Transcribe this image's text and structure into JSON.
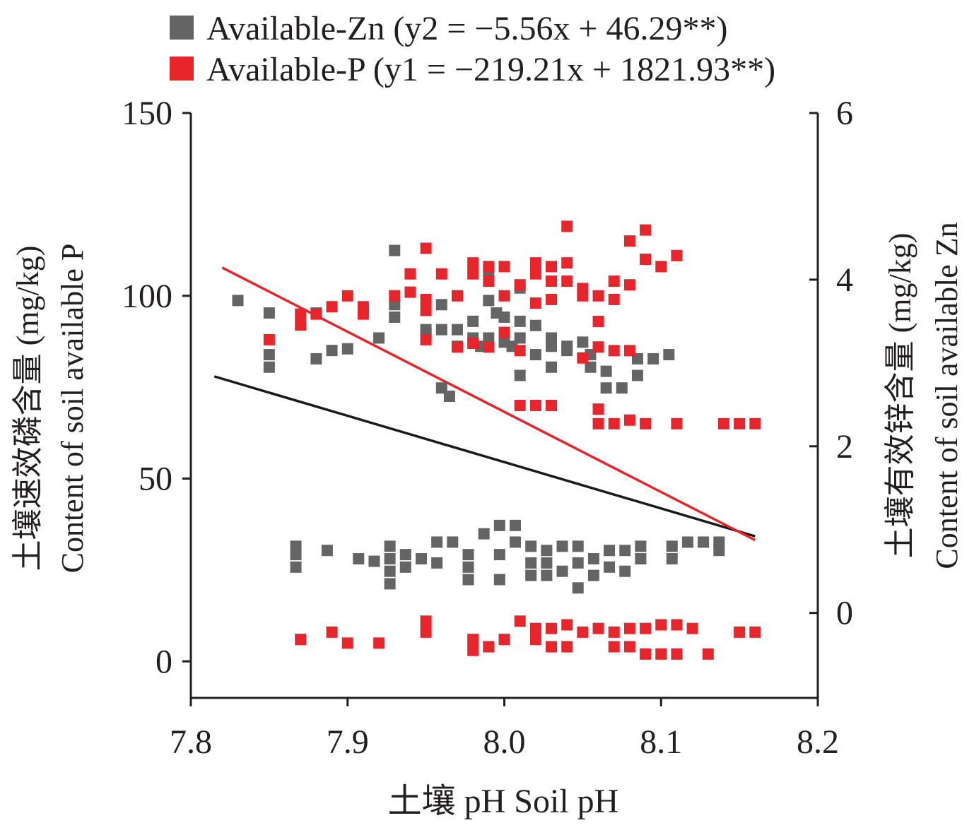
{
  "chart_data": {
    "type": "scatter",
    "x_ticks": [
      "7.8",
      "7.9",
      "8.0",
      "8.1",
      "8.2"
    ],
    "y_left_ticks": [
      "0",
      "50",
      "100",
      "150"
    ],
    "y_right_ticks": [
      "0",
      "2",
      "4",
      "6"
    ],
    "xlim": [
      7.8,
      8.2
    ],
    "ylim_left": [
      -10,
      150
    ],
    "ylim_right": [
      -1.02,
      6
    ],
    "xlabel": "土壤 pH Soil pH",
    "ylabel_left_cn": "土壤速效磷含量 (mg/kg)",
    "ylabel_left_en": "Content of soil available P",
    "ylabel_right_cn": "土壤有效锌含量 (mg/kg)",
    "ylabel_right_en": "Content of soil available Zn",
    "legend_position": "top",
    "series": [
      {
        "name": "Available-Zn",
        "legend_label": "Available-Zn (y2 = −5.56x + 46.29**)",
        "color": "#646464",
        "axis": "right",
        "equation": "y2 = −5.56x + 46.29**",
        "fit": {
          "slope": -5.56,
          "intercept": 46.29,
          "x_range": [
            7.815,
            8.16
          ]
        },
        "points": [
          [
            7.83,
            3.75
          ],
          [
            7.85,
            3.6
          ],
          [
            7.85,
            3.1
          ],
          [
            7.85,
            2.95
          ],
          [
            7.88,
            3.6
          ],
          [
            7.88,
            3.05
          ],
          [
            7.89,
            3.15
          ],
          [
            7.9,
            3.17
          ],
          [
            7.92,
            3.3
          ],
          [
            7.93,
            4.35
          ],
          [
            7.93,
            3.7
          ],
          [
            7.93,
            3.55
          ],
          [
            7.95,
            3.35
          ],
          [
            7.95,
            3.4
          ],
          [
            7.96,
            3.7
          ],
          [
            7.96,
            3.4
          ],
          [
            7.96,
            2.7
          ],
          [
            7.965,
            2.6
          ],
          [
            7.97,
            3.4
          ],
          [
            7.97,
            3.2
          ],
          [
            7.98,
            3.5
          ],
          [
            7.98,
            3.3
          ],
          [
            7.985,
            3.2
          ],
          [
            7.99,
            4.1
          ],
          [
            7.99,
            3.75
          ],
          [
            7.99,
            3.3
          ],
          [
            7.995,
            3.6
          ],
          [
            8.0,
            3.55
          ],
          [
            8.0,
            3.25
          ],
          [
            8.005,
            3.2
          ],
          [
            8.01,
            3.9
          ],
          [
            8.01,
            3.5
          ],
          [
            8.01,
            3.3
          ],
          [
            8.01,
            2.85
          ],
          [
            8.02,
            3.45
          ],
          [
            8.02,
            3.1
          ],
          [
            8.03,
            3.3
          ],
          [
            8.03,
            3.2
          ],
          [
            8.03,
            2.95
          ],
          [
            8.04,
            3.15
          ],
          [
            8.04,
            3.2
          ],
          [
            8.05,
            3.25
          ],
          [
            8.055,
            3.1
          ],
          [
            8.055,
            2.95
          ],
          [
            8.065,
            2.9
          ],
          [
            8.065,
            2.7
          ],
          [
            8.075,
            2.7
          ],
          [
            8.085,
            3.05
          ],
          [
            8.085,
            2.85
          ],
          [
            8.095,
            3.05
          ],
          [
            8.105,
            3.1
          ],
          [
            7.867,
            0.8
          ],
          [
            7.867,
            0.7
          ],
          [
            7.867,
            0.55
          ],
          [
            7.887,
            0.75
          ],
          [
            7.907,
            0.65
          ],
          [
            7.917,
            0.62
          ],
          [
            7.927,
            0.8
          ],
          [
            7.927,
            0.65
          ],
          [
            7.927,
            0.5
          ],
          [
            7.927,
            0.35
          ],
          [
            7.937,
            0.7
          ],
          [
            7.937,
            0.55
          ],
          [
            7.947,
            0.65
          ],
          [
            7.957,
            0.85
          ],
          [
            7.957,
            0.6
          ],
          [
            7.967,
            0.85
          ],
          [
            7.977,
            0.7
          ],
          [
            7.977,
            0.55
          ],
          [
            7.977,
            0.4
          ],
          [
            7.987,
            0.95
          ],
          [
            7.997,
            1.05
          ],
          [
            7.997,
            0.7
          ],
          [
            7.997,
            0.4
          ],
          [
            8.007,
            1.05
          ],
          [
            8.007,
            0.85
          ],
          [
            8.017,
            0.8
          ],
          [
            8.017,
            0.6
          ],
          [
            8.017,
            0.45
          ],
          [
            8.027,
            0.75
          ],
          [
            8.027,
            0.6
          ],
          [
            8.027,
            0.45
          ],
          [
            8.037,
            0.8
          ],
          [
            8.037,
            0.5
          ],
          [
            8.047,
            0.8
          ],
          [
            8.047,
            0.6
          ],
          [
            8.047,
            0.3
          ],
          [
            8.057,
            0.65
          ],
          [
            8.057,
            0.45
          ],
          [
            8.067,
            0.75
          ],
          [
            8.067,
            0.55
          ],
          [
            8.077,
            0.75
          ],
          [
            8.077,
            0.5
          ],
          [
            8.087,
            0.8
          ],
          [
            8.087,
            0.65
          ],
          [
            8.107,
            0.8
          ],
          [
            8.107,
            0.65
          ],
          [
            8.117,
            0.85
          ],
          [
            8.127,
            0.85
          ],
          [
            8.137,
            0.85
          ],
          [
            8.137,
            0.75
          ]
        ]
      },
      {
        "name": "Available-P",
        "legend_label": "Available-P (y1 = −219.21x + 1821.93**)",
        "color": "#e8252b",
        "axis": "left",
        "equation": "y1 = −219.21x + 1821.93**",
        "fit": {
          "slope": -219.21,
          "intercept": 1821.93,
          "x_range": [
            7.82,
            8.16
          ]
        },
        "points": [
          [
            7.85,
            88
          ],
          [
            7.87,
            95
          ],
          [
            7.87,
            92
          ],
          [
            7.88,
            95
          ],
          [
            7.89,
            97
          ],
          [
            7.9,
            100
          ],
          [
            7.91,
            97
          ],
          [
            7.91,
            95
          ],
          [
            7.93,
            100
          ],
          [
            7.94,
            106
          ],
          [
            7.94,
            101
          ],
          [
            7.95,
            113
          ],
          [
            7.95,
            99
          ],
          [
            7.95,
            96
          ],
          [
            7.95,
            88
          ],
          [
            7.96,
            106
          ],
          [
            7.97,
            100
          ],
          [
            7.98,
            109
          ],
          [
            7.98,
            106
          ],
          [
            7.97,
            86
          ],
          [
            7.98,
            87
          ],
          [
            7.99,
            108
          ],
          [
            7.99,
            104
          ],
          [
            7.99,
            86
          ],
          [
            8.0,
            108
          ],
          [
            8.0,
            100
          ],
          [
            8.0,
            90
          ],
          [
            8.01,
            103
          ],
          [
            8.01,
            85
          ],
          [
            8.02,
            109
          ],
          [
            8.02,
            106
          ],
          [
            8.02,
            98
          ],
          [
            8.03,
            108
          ],
          [
            8.03,
            104
          ],
          [
            8.03,
            99
          ],
          [
            8.04,
            119
          ],
          [
            8.04,
            109
          ],
          [
            8.04,
            104
          ],
          [
            8.05,
            102
          ],
          [
            8.05,
            100
          ],
          [
            8.05,
            83
          ],
          [
            8.06,
            100
          ],
          [
            8.06,
            93
          ],
          [
            8.06,
            86
          ],
          [
            8.07,
            104
          ],
          [
            8.07,
            99
          ],
          [
            8.07,
            85
          ],
          [
            8.08,
            115
          ],
          [
            8.08,
            103
          ],
          [
            8.08,
            85
          ],
          [
            8.09,
            118
          ],
          [
            8.09,
            110
          ],
          [
            8.1,
            108
          ],
          [
            8.11,
            111
          ],
          [
            8.01,
            70
          ],
          [
            8.02,
            70
          ],
          [
            8.03,
            70
          ],
          [
            8.06,
            69
          ],
          [
            8.06,
            65
          ],
          [
            8.07,
            65
          ],
          [
            8.08,
            66
          ],
          [
            8.09,
            65
          ],
          [
            8.11,
            65
          ],
          [
            8.14,
            65
          ],
          [
            8.15,
            65
          ],
          [
            8.16,
            65
          ],
          [
            7.87,
            6
          ],
          [
            7.89,
            8
          ],
          [
            7.9,
            5
          ],
          [
            7.92,
            5
          ],
          [
            7.95,
            11
          ],
          [
            7.95,
            8
          ],
          [
            7.98,
            6
          ],
          [
            7.98,
            3
          ],
          [
            7.99,
            4
          ],
          [
            8.0,
            6
          ],
          [
            8.01,
            11
          ],
          [
            8.02,
            9
          ],
          [
            8.02,
            6
          ],
          [
            8.03,
            9
          ],
          [
            8.03,
            4
          ],
          [
            8.04,
            10
          ],
          [
            8.04,
            4
          ],
          [
            8.05,
            8
          ],
          [
            8.06,
            9
          ],
          [
            8.07,
            8
          ],
          [
            8.07,
            4
          ],
          [
            8.08,
            9
          ],
          [
            8.08,
            4
          ],
          [
            8.09,
            9
          ],
          [
            8.09,
            2
          ],
          [
            8.1,
            10
          ],
          [
            8.1,
            2
          ],
          [
            8.11,
            10
          ],
          [
            8.11,
            2
          ],
          [
            8.12,
            9
          ],
          [
            8.13,
            2
          ],
          [
            8.15,
            8
          ],
          [
            8.16,
            8
          ]
        ]
      }
    ]
  }
}
